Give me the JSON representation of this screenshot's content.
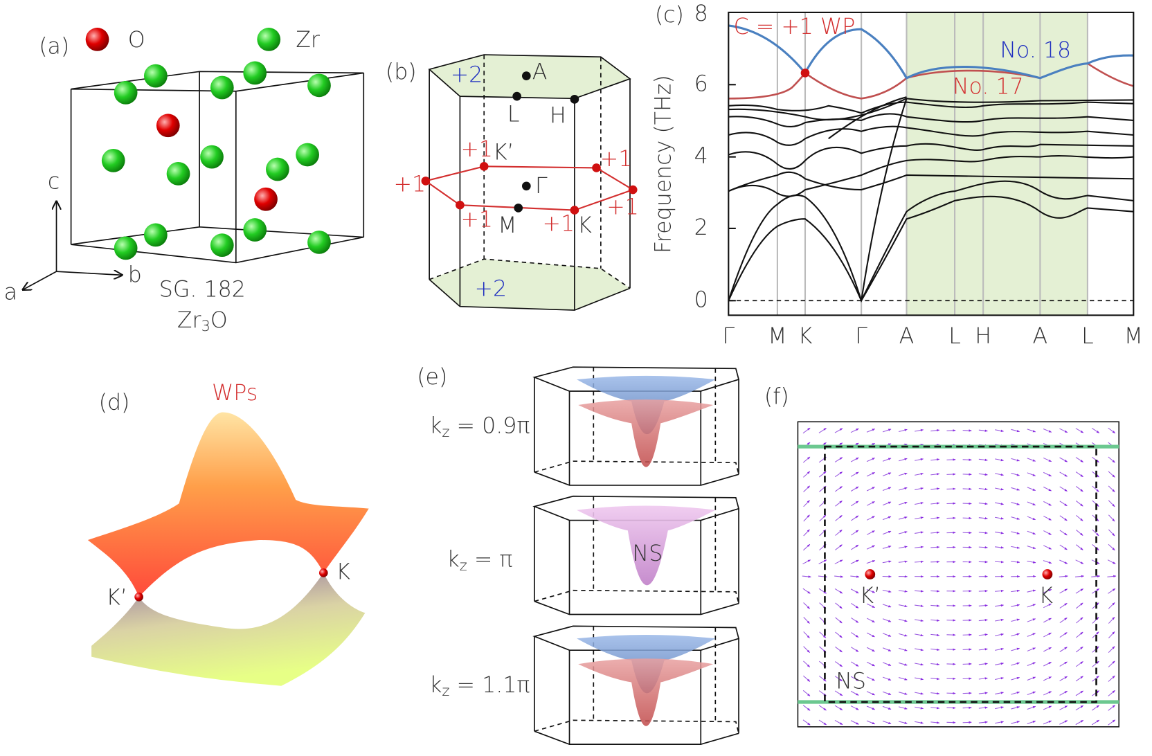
{
  "panel_a": {
    "label": "(a)",
    "legend": [
      "O",
      "Zr"
    ],
    "axes": [
      "c",
      "a",
      "b"
    ],
    "space_group": "SG. 182",
    "formula": {
      "main": "Zr",
      "sub": "3",
      "end": "O"
    }
  },
  "panel_b": {
    "label": "(b)",
    "top_charge": "+2",
    "bottom_charge": "+2",
    "points": [
      "A",
      "L",
      "H",
      "K’",
      "Γ",
      "M",
      "K"
    ],
    "charges": [
      "+1",
      "+1",
      "+1",
      "+1",
      "+1",
      "+1"
    ]
  },
  "panel_c": {
    "label": "(c)",
    "y_label": "Frequency (THz)",
    "y_ticks": [
      "0",
      "2",
      "4",
      "6",
      "8"
    ],
    "x_labels": [
      "Γ",
      "M",
      "K",
      "Γ",
      "A",
      "L",
      "H",
      "A",
      "L",
      "M"
    ],
    "annotations": [
      "C = +1 WP",
      "No. 18",
      "No. 17"
    ]
  },
  "panel_d": {
    "label": "(d)",
    "title": "WPs",
    "points": [
      "K’",
      "K"
    ]
  },
  "panel_e": {
    "label": "(e)",
    "slices": [
      {
        "k": "k",
        "sub": "z",
        "rest": " = 0.9π"
      },
      {
        "k": "k",
        "sub": "z",
        "rest": " = π"
      },
      {
        "k": "k",
        "sub": "z",
        "rest": " = 1.1π"
      }
    ],
    "surface": "NS"
  },
  "panel_f": {
    "label": "(f)",
    "points": [
      "K’",
      "K"
    ],
    "surface": "NS"
  }
}
